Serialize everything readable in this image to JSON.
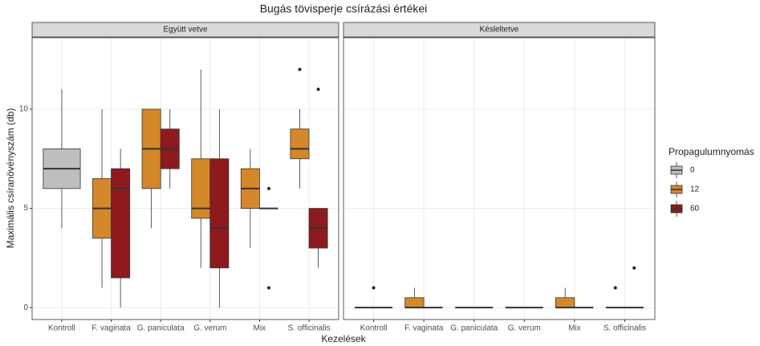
{
  "chart_data": {
    "type": "box",
    "title": "Bugás tövisperje csírázási értékei",
    "x_label": "Kezelések",
    "y_label": "Maximális csíranövényszám (db)",
    "legend_title": "Propagulumnyomás",
    "legend_position": "right",
    "grid": true,
    "ylim": [
      -0.6,
      13.6
    ],
    "yticks": [
      0,
      5,
      10
    ],
    "series": [
      {
        "name": "0",
        "color": "#bebebe"
      },
      {
        "name": "12",
        "color": "#d4882a"
      },
      {
        "name": "60",
        "color": "#8e1a1e"
      }
    ],
    "facets": [
      {
        "title": "Együtt vetve",
        "categories": [
          "Kontroll",
          "F. vaginata",
          "G. paniculata",
          "G. verum",
          "Mix",
          "S. officinalis"
        ],
        "boxes": [
          [
            {
              "low": 4,
              "q1": 6,
              "median": 7,
              "q3": 8,
              "high": 11,
              "outliers": []
            },
            null,
            null,
            null,
            null,
            null
          ],
          [
            null,
            {
              "low": 1,
              "q1": 3.5,
              "median": 5,
              "q3": 6.5,
              "high": 10,
              "outliers": []
            },
            {
              "low": 4,
              "q1": 6,
              "median": 8,
              "q3": 10,
              "high": 10,
              "outliers": []
            },
            {
              "low": 2,
              "q1": 4.5,
              "median": 5,
              "q3": 7.5,
              "high": 12,
              "outliers": []
            },
            {
              "low": 3,
              "q1": 5,
              "median": 6,
              "q3": 7,
              "high": 8,
              "outliers": []
            },
            {
              "low": 6,
              "q1": 7.5,
              "median": 8,
              "q3": 9,
              "high": 10,
              "outliers": [
                12
              ]
            }
          ],
          [
            null,
            {
              "low": 0,
              "q1": 1.5,
              "median": 6,
              "q3": 7,
              "high": 8,
              "outliers": []
            },
            {
              "low": 6,
              "q1": 7,
              "median": 8,
              "q3": 9,
              "high": 10,
              "outliers": []
            },
            {
              "low": 0,
              "q1": 2,
              "median": 4,
              "q3": 7.5,
              "high": 10,
              "outliers": []
            },
            {
              "low": 5,
              "q1": 5,
              "median": 5,
              "q3": 5,
              "high": 5,
              "outliers": [
                6,
                1
              ]
            },
            {
              "low": 2,
              "q1": 3,
              "median": 4,
              "q3": 5,
              "high": 5,
              "outliers": [
                11
              ]
            }
          ]
        ]
      },
      {
        "title": "Késleltetve",
        "categories": [
          "Kontroll",
          "F. vaginata",
          "G. paniculata",
          "G. verum",
          "Mix",
          "S. officinalis"
        ],
        "boxes": [
          [
            {
              "low": 0,
              "q1": 0,
              "median": 0,
              "q3": 0,
              "high": 0,
              "outliers": [
                1
              ]
            },
            null,
            null,
            null,
            null,
            null
          ],
          [
            null,
            {
              "low": 0,
              "q1": 0,
              "median": 0,
              "q3": 0.5,
              "high": 1,
              "outliers": []
            },
            {
              "low": 0,
              "q1": 0,
              "median": 0,
              "q3": 0,
              "high": 0,
              "outliers": []
            },
            {
              "low": 0,
              "q1": 0,
              "median": 0,
              "q3": 0,
              "high": 0,
              "outliers": []
            },
            {
              "low": 0,
              "q1": 0,
              "median": 0,
              "q3": 0.5,
              "high": 1,
              "outliers": []
            },
            {
              "low": 0,
              "q1": 0,
              "median": 0,
              "q3": 0,
              "high": 0,
              "outliers": [
                1
              ]
            }
          ],
          [
            null,
            {
              "low": 0,
              "q1": 0,
              "median": 0,
              "q3": 0,
              "high": 0,
              "outliers": []
            },
            {
              "low": 0,
              "q1": 0,
              "median": 0,
              "q3": 0,
              "high": 0,
              "outliers": []
            },
            {
              "low": 0,
              "q1": 0,
              "median": 0,
              "q3": 0,
              "high": 0,
              "outliers": []
            },
            {
              "low": 0,
              "q1": 0,
              "median": 0,
              "q3": 0,
              "high": 0,
              "outliers": []
            },
            {
              "low": 0,
              "q1": 0,
              "median": 0,
              "q3": 0,
              "high": 0,
              "outliers": [
                2
              ]
            }
          ]
        ]
      }
    ]
  }
}
